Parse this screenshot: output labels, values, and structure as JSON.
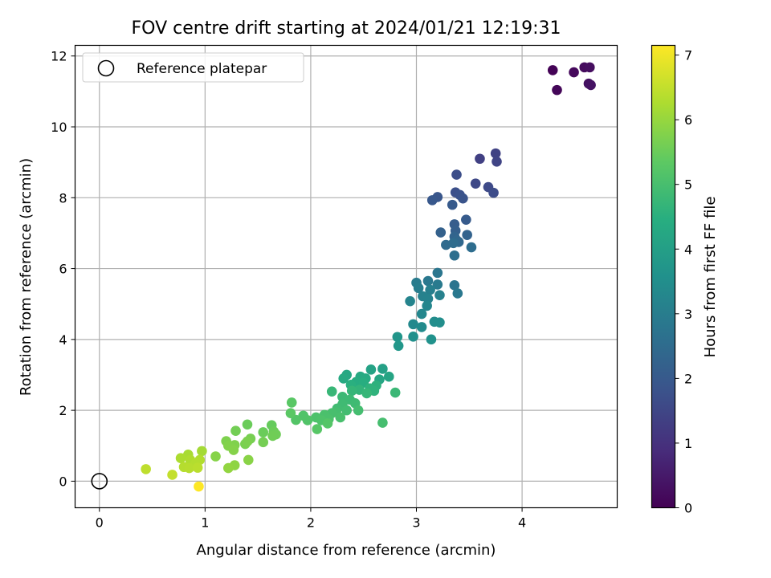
{
  "chart_data": {
    "type": "scatter",
    "title": "FOV centre drift starting at 2024/01/21 12:19:31",
    "xlabel": "Angular distance from reference (arcmin)",
    "ylabel": "Rotation from reference (arcmin)",
    "xlim": [
      -0.23,
      4.9
    ],
    "ylim": [
      -0.75,
      12.3
    ],
    "x_ticks": [
      0,
      1,
      2,
      3,
      4
    ],
    "y_ticks": [
      0,
      2,
      4,
      6,
      8,
      10,
      12
    ],
    "grid": true,
    "colormap": "viridis",
    "colorbar": {
      "label": "Hours from first FF file",
      "range": [
        0,
        7.15
      ],
      "ticks": [
        0,
        1,
        2,
        3,
        4,
        5,
        6,
        7
      ]
    },
    "legend": {
      "placement": "top-left",
      "entries": [
        "Reference platepar"
      ]
    },
    "reference_point": {
      "x": 0,
      "y": 0,
      "marker": "open-circle"
    },
    "points": [
      {
        "x": 4.29,
        "y": 11.6,
        "c": 0.05
      },
      {
        "x": 4.33,
        "y": 11.04,
        "c": 0.1
      },
      {
        "x": 4.49,
        "y": 11.54,
        "c": 0.15
      },
      {
        "x": 4.59,
        "y": 11.68,
        "c": 0.2
      },
      {
        "x": 4.64,
        "y": 11.68,
        "c": 0.25
      },
      {
        "x": 4.63,
        "y": 11.22,
        "c": 0.3
      },
      {
        "x": 4.65,
        "y": 11.18,
        "c": 0.35
      },
      {
        "x": 3.6,
        "y": 9.1,
        "c": 1.35
      },
      {
        "x": 3.75,
        "y": 9.25,
        "c": 1.4
      },
      {
        "x": 3.76,
        "y": 9.02,
        "c": 1.45
      },
      {
        "x": 3.56,
        "y": 8.4,
        "c": 1.55
      },
      {
        "x": 3.68,
        "y": 8.3,
        "c": 1.6
      },
      {
        "x": 3.73,
        "y": 8.14,
        "c": 1.65
      },
      {
        "x": 3.38,
        "y": 8.65,
        "c": 1.7
      },
      {
        "x": 3.37,
        "y": 8.15,
        "c": 1.75
      },
      {
        "x": 3.41,
        "y": 8.08,
        "c": 1.8
      },
      {
        "x": 3.44,
        "y": 7.98,
        "c": 1.85
      },
      {
        "x": 3.2,
        "y": 8.02,
        "c": 1.9
      },
      {
        "x": 3.15,
        "y": 7.93,
        "c": 1.95
      },
      {
        "x": 3.34,
        "y": 7.8,
        "c": 2.0
      },
      {
        "x": 3.47,
        "y": 7.38,
        "c": 2.05
      },
      {
        "x": 3.36,
        "y": 7.25,
        "c": 2.1
      },
      {
        "x": 3.37,
        "y": 7.07,
        "c": 2.15
      },
      {
        "x": 3.23,
        "y": 7.02,
        "c": 2.2
      },
      {
        "x": 3.48,
        "y": 6.95,
        "c": 2.25
      },
      {
        "x": 3.36,
        "y": 6.9,
        "c": 2.3
      },
      {
        "x": 3.38,
        "y": 6.8,
        "c": 2.35
      },
      {
        "x": 3.4,
        "y": 6.75,
        "c": 2.4
      },
      {
        "x": 3.28,
        "y": 6.67,
        "c": 2.45
      },
      {
        "x": 3.35,
        "y": 6.72,
        "c": 2.5
      },
      {
        "x": 3.52,
        "y": 6.6,
        "c": 2.55
      },
      {
        "x": 3.36,
        "y": 6.37,
        "c": 2.6
      },
      {
        "x": 3.2,
        "y": 5.88,
        "c": 2.8
      },
      {
        "x": 3.11,
        "y": 5.65,
        "c": 2.85
      },
      {
        "x": 3.2,
        "y": 5.55,
        "c": 2.9
      },
      {
        "x": 3.0,
        "y": 5.6,
        "c": 2.95
      },
      {
        "x": 3.02,
        "y": 5.45,
        "c": 3.0
      },
      {
        "x": 3.13,
        "y": 5.4,
        "c": 3.05
      },
      {
        "x": 3.22,
        "y": 5.25,
        "c": 3.1
      },
      {
        "x": 3.06,
        "y": 5.22,
        "c": 3.12
      },
      {
        "x": 3.11,
        "y": 5.15,
        "c": 3.15
      },
      {
        "x": 3.36,
        "y": 5.53,
        "c": 2.75
      },
      {
        "x": 3.39,
        "y": 5.3,
        "c": 2.85
      },
      {
        "x": 2.94,
        "y": 5.08,
        "c": 3.2
      },
      {
        "x": 3.1,
        "y": 4.95,
        "c": 3.25
      },
      {
        "x": 3.05,
        "y": 4.72,
        "c": 3.3
      },
      {
        "x": 2.97,
        "y": 4.43,
        "c": 3.35
      },
      {
        "x": 3.05,
        "y": 4.35,
        "c": 3.4
      },
      {
        "x": 3.17,
        "y": 4.5,
        "c": 3.45
      },
      {
        "x": 3.22,
        "y": 4.48,
        "c": 3.5
      },
      {
        "x": 2.97,
        "y": 4.08,
        "c": 3.55
      },
      {
        "x": 3.14,
        "y": 4.0,
        "c": 3.6
      },
      {
        "x": 2.82,
        "y": 4.07,
        "c": 3.7
      },
      {
        "x": 2.83,
        "y": 3.82,
        "c": 3.75
      },
      {
        "x": 2.68,
        "y": 3.17,
        "c": 4.05
      },
      {
        "x": 2.57,
        "y": 3.15,
        "c": 4.1
      },
      {
        "x": 2.74,
        "y": 2.95,
        "c": 4.15
      },
      {
        "x": 2.65,
        "y": 2.87,
        "c": 4.2
      },
      {
        "x": 2.34,
        "y": 3.0,
        "c": 4.25
      },
      {
        "x": 2.31,
        "y": 2.9,
        "c": 4.3
      },
      {
        "x": 2.47,
        "y": 2.95,
        "c": 4.3
      },
      {
        "x": 2.52,
        "y": 2.9,
        "c": 4.35
      },
      {
        "x": 2.43,
        "y": 2.8,
        "c": 4.4
      },
      {
        "x": 2.5,
        "y": 2.78,
        "c": 4.45
      },
      {
        "x": 2.38,
        "y": 2.72,
        "c": 4.5
      },
      {
        "x": 2.62,
        "y": 2.7,
        "c": 4.55
      },
      {
        "x": 2.56,
        "y": 2.62,
        "c": 4.6
      },
      {
        "x": 2.6,
        "y": 2.55,
        "c": 4.6
      },
      {
        "x": 2.46,
        "y": 2.58,
        "c": 4.65
      },
      {
        "x": 2.39,
        "y": 2.55,
        "c": 4.7
      },
      {
        "x": 2.53,
        "y": 2.48,
        "c": 4.72
      },
      {
        "x": 2.2,
        "y": 2.53,
        "c": 4.75
      },
      {
        "x": 2.8,
        "y": 2.5,
        "c": 4.78
      },
      {
        "x": 2.3,
        "y": 2.38,
        "c": 4.8
      },
      {
        "x": 2.37,
        "y": 2.3,
        "c": 4.82
      },
      {
        "x": 2.42,
        "y": 2.2,
        "c": 4.85
      },
      {
        "x": 2.3,
        "y": 2.17,
        "c": 4.87
      },
      {
        "x": 2.25,
        "y": 2.05,
        "c": 4.9
      },
      {
        "x": 2.34,
        "y": 2.0,
        "c": 4.92
      },
      {
        "x": 2.45,
        "y": 2.0,
        "c": 4.95
      },
      {
        "x": 2.24,
        "y": 1.95,
        "c": 4.97
      },
      {
        "x": 2.68,
        "y": 1.65,
        "c": 4.97
      },
      {
        "x": 2.2,
        "y": 1.92,
        "c": 5.0
      },
      {
        "x": 2.28,
        "y": 1.8,
        "c": 5.02
      },
      {
        "x": 2.13,
        "y": 1.87,
        "c": 5.05
      },
      {
        "x": 2.17,
        "y": 1.75,
        "c": 5.07
      },
      {
        "x": 2.05,
        "y": 1.8,
        "c": 5.1
      },
      {
        "x": 2.1,
        "y": 1.72,
        "c": 5.12
      },
      {
        "x": 1.93,
        "y": 1.85,
        "c": 5.15
      },
      {
        "x": 1.97,
        "y": 1.72,
        "c": 5.17
      },
      {
        "x": 1.86,
        "y": 1.73,
        "c": 5.2
      },
      {
        "x": 2.16,
        "y": 1.63,
        "c": 5.22
      },
      {
        "x": 2.06,
        "y": 1.47,
        "c": 5.25
      },
      {
        "x": 1.82,
        "y": 2.22,
        "c": 5.28
      },
      {
        "x": 1.81,
        "y": 1.92,
        "c": 5.3
      },
      {
        "x": 1.63,
        "y": 1.58,
        "c": 5.45
      },
      {
        "x": 1.4,
        "y": 1.6,
        "c": 5.5
      },
      {
        "x": 1.55,
        "y": 1.38,
        "c": 5.5
      },
      {
        "x": 1.65,
        "y": 1.4,
        "c": 5.52
      },
      {
        "x": 1.67,
        "y": 1.32,
        "c": 5.55
      },
      {
        "x": 1.64,
        "y": 1.28,
        "c": 5.57
      },
      {
        "x": 1.29,
        "y": 1.42,
        "c": 5.6
      },
      {
        "x": 1.55,
        "y": 1.1,
        "c": 5.62
      },
      {
        "x": 1.43,
        "y": 1.2,
        "c": 5.65
      },
      {
        "x": 1.38,
        "y": 1.05,
        "c": 5.67
      },
      {
        "x": 1.4,
        "y": 1.12,
        "c": 5.7
      },
      {
        "x": 1.2,
        "y": 1.13,
        "c": 5.72
      },
      {
        "x": 1.28,
        "y": 1.02,
        "c": 5.75
      },
      {
        "x": 1.22,
        "y": 1.0,
        "c": 5.77
      },
      {
        "x": 1.27,
        "y": 0.88,
        "c": 5.8
      },
      {
        "x": 1.1,
        "y": 0.7,
        "c": 5.82
      },
      {
        "x": 1.41,
        "y": 0.6,
        "c": 5.85
      },
      {
        "x": 1.28,
        "y": 0.45,
        "c": 5.9
      },
      {
        "x": 1.22,
        "y": 0.37,
        "c": 5.95
      },
      {
        "x": 0.97,
        "y": 0.85,
        "c": 6.15
      },
      {
        "x": 0.84,
        "y": 0.75,
        "c": 6.2
      },
      {
        "x": 0.77,
        "y": 0.65,
        "c": 6.25
      },
      {
        "x": 0.86,
        "y": 0.6,
        "c": 6.28
      },
      {
        "x": 0.95,
        "y": 0.6,
        "c": 6.3
      },
      {
        "x": 0.91,
        "y": 0.5,
        "c": 6.32
      },
      {
        "x": 0.8,
        "y": 0.4,
        "c": 6.35
      },
      {
        "x": 0.85,
        "y": 0.37,
        "c": 6.37
      },
      {
        "x": 0.93,
        "y": 0.38,
        "c": 6.4
      },
      {
        "x": 0.44,
        "y": 0.34,
        "c": 6.45
      },
      {
        "x": 0.69,
        "y": 0.18,
        "c": 6.5
      },
      {
        "x": 0.94,
        "y": -0.15,
        "c": 7.15
      }
    ]
  }
}
